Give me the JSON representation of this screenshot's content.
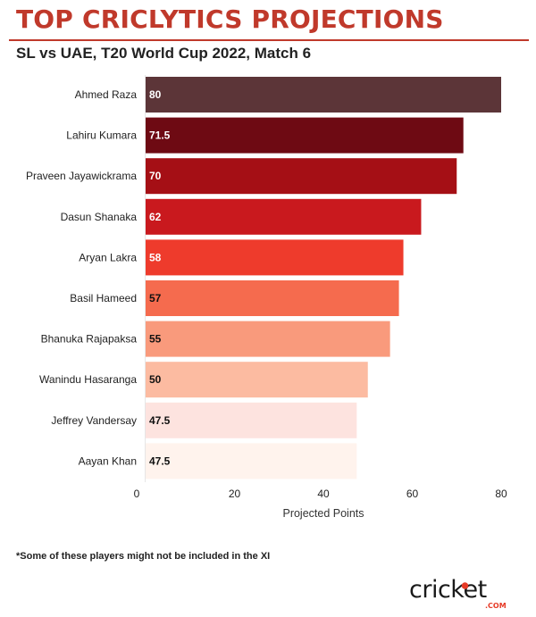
{
  "header": {
    "title": "TOP CRICLYTICS PROJECTIONS",
    "subtitle": "SL vs UAE, T20 World Cup 2022, Match 6"
  },
  "footnote": "*Some of these players might not be included in the XI",
  "logo": {
    "word": "cricket",
    "suffix": ".COM"
  },
  "chart_data": {
    "type": "bar",
    "orientation": "horizontal",
    "categories": [
      "Ahmed Raza",
      "Lahiru Kumara",
      "Praveen Jayawickrama",
      "Dasun Shanaka",
      "Aryan Lakra",
      "Basil Hameed",
      "Bhanuka Rajapaksa",
      "Wanindu Hasaranga",
      "Jeffrey Vandersay",
      "Aayan Khan"
    ],
    "values": [
      80,
      71.5,
      70,
      62,
      58,
      57,
      55,
      50,
      47.5,
      47.5
    ],
    "labels": [
      "80",
      "71.5",
      "70",
      "62",
      "58",
      "57",
      "55",
      "50",
      "47.5",
      "47.5"
    ],
    "colors": [
      "#5c3538",
      "#6e0a13",
      "#a50f15",
      "#c9191e",
      "#ee3b2c",
      "#f56b4e",
      "#f99a7c",
      "#fcbba1",
      "#fde3df",
      "#fff3ed"
    ],
    "label_colors": [
      "#ffffff",
      "#ffffff",
      "#ffffff",
      "#ffffff",
      "#ffffff",
      "#111111",
      "#111111",
      "#111111",
      "#111111",
      "#111111"
    ],
    "xlabel": "Projected Points",
    "xlim": [
      0,
      84
    ],
    "xticks": [
      0,
      20,
      40,
      60,
      80
    ],
    "grid": false
  }
}
